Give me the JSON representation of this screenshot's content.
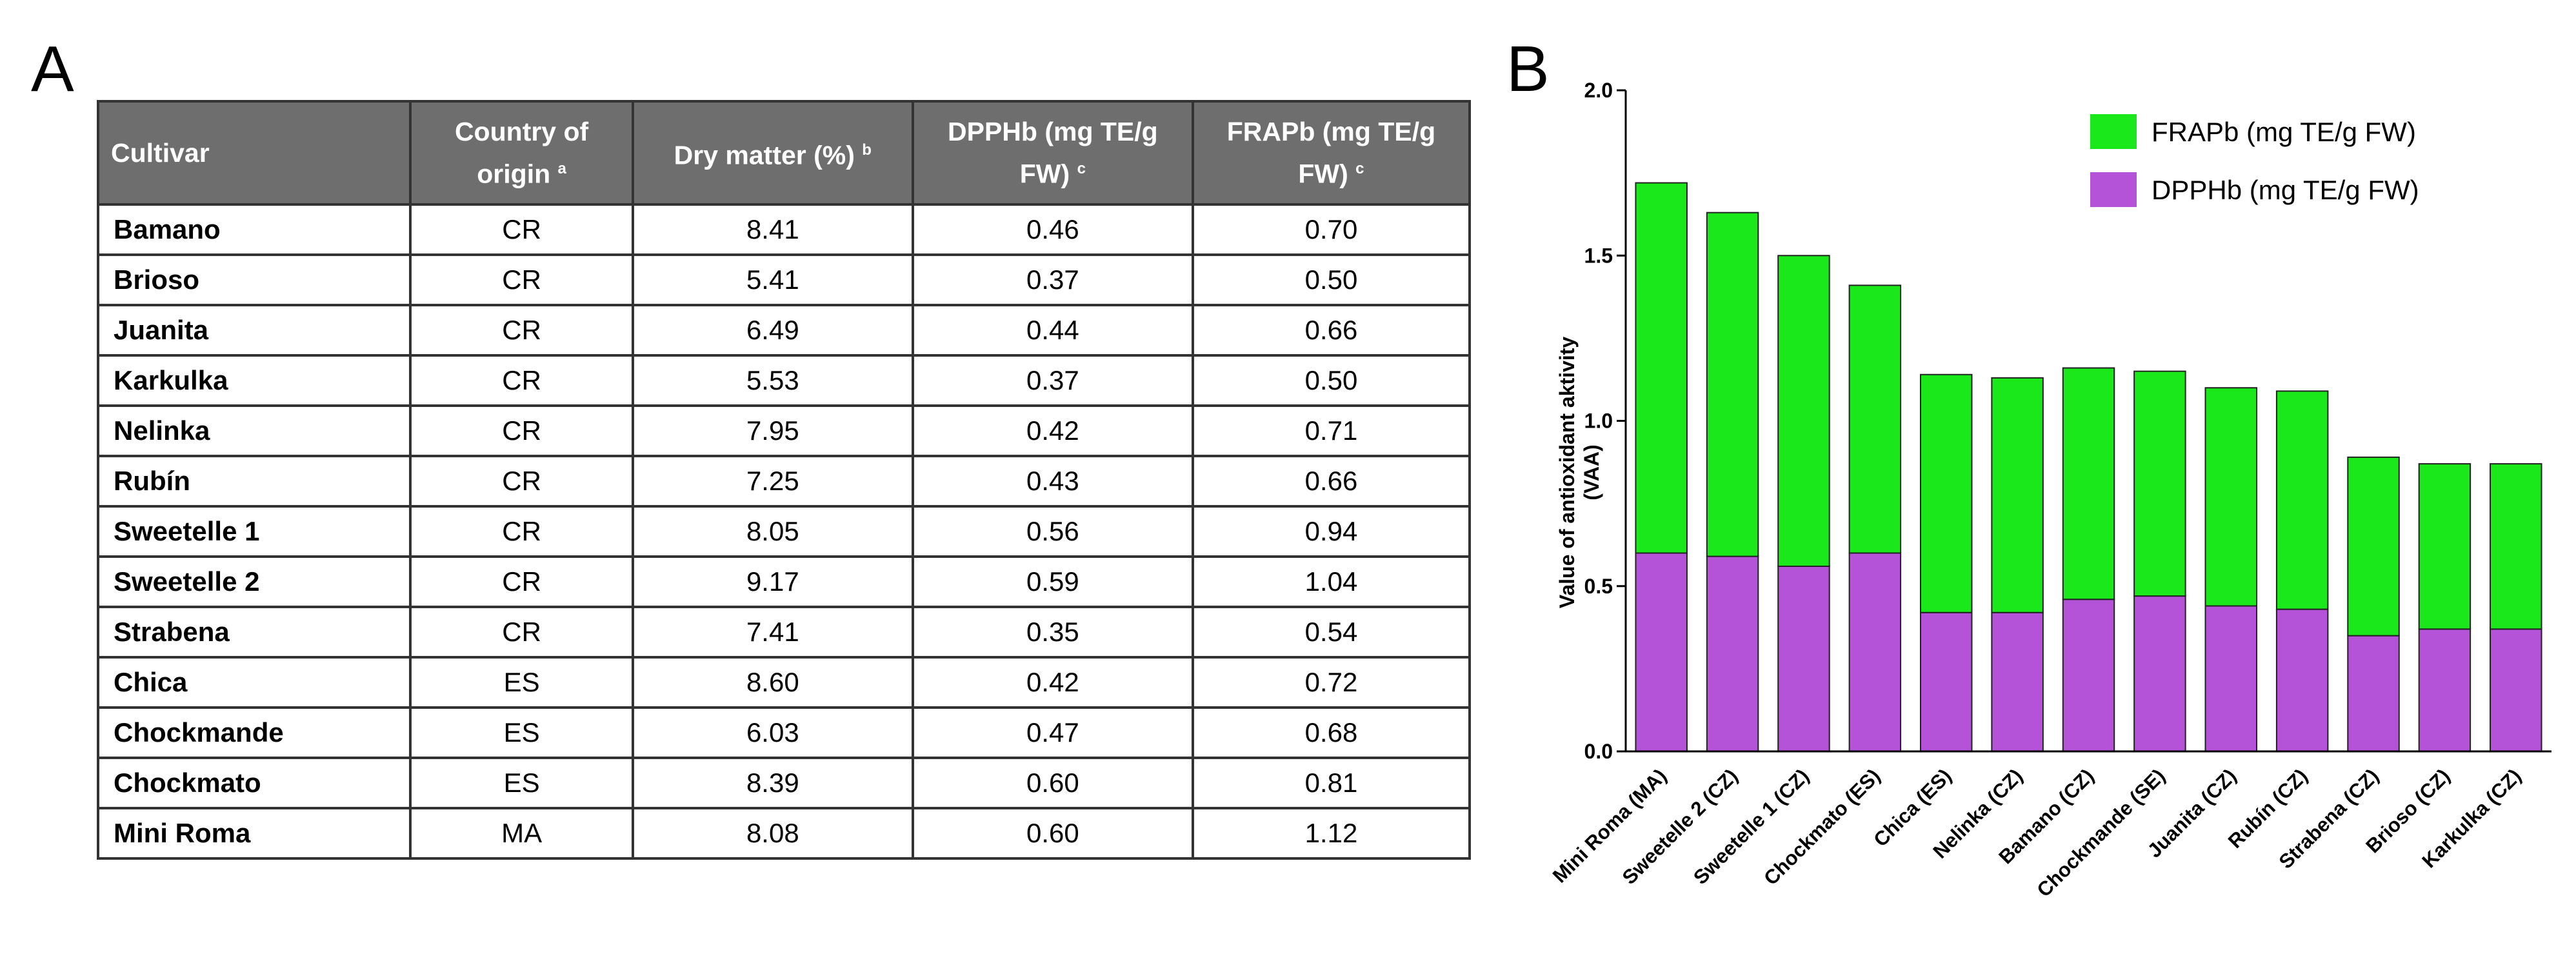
{
  "panels": {
    "a": "A",
    "b": "B"
  },
  "table": {
    "headers": {
      "cultivar": "Cultivar",
      "country": "Country of origin",
      "country_sup": "a",
      "dry_matter": "Dry matter (%)",
      "dry_matter_sup": "b",
      "dpph": "DPPHb (mg TE/g FW)",
      "dpph_sup": "c",
      "frap": "FRAPb (mg TE/g FW)",
      "frap_sup": "c"
    },
    "rows": [
      {
        "cultivar": "Bamano",
        "country": "CR",
        "dry_matter": "8.41",
        "dpph": "0.46",
        "frap": "0.70"
      },
      {
        "cultivar": "Brioso",
        "country": "CR",
        "dry_matter": "5.41",
        "dpph": "0.37",
        "frap": "0.50"
      },
      {
        "cultivar": "Juanita",
        "country": "CR",
        "dry_matter": "6.49",
        "dpph": "0.44",
        "frap": "0.66"
      },
      {
        "cultivar": "Karkulka",
        "country": "CR",
        "dry_matter": "5.53",
        "dpph": "0.37",
        "frap": "0.50"
      },
      {
        "cultivar": "Nelinka",
        "country": "CR",
        "dry_matter": "7.95",
        "dpph": "0.42",
        "frap": "0.71"
      },
      {
        "cultivar": "Rubín",
        "country": "CR",
        "dry_matter": "7.25",
        "dpph": "0.43",
        "frap": "0.66"
      },
      {
        "cultivar": "Sweetelle 1",
        "country": "CR",
        "dry_matter": "8.05",
        "dpph": "0.56",
        "frap": "0.94"
      },
      {
        "cultivar": "Sweetelle 2",
        "country": "CR",
        "dry_matter": "9.17",
        "dpph": "0.59",
        "frap": "1.04"
      },
      {
        "cultivar": "Strabena",
        "country": "CR",
        "dry_matter": "7.41",
        "dpph": "0.35",
        "frap": "0.54"
      },
      {
        "cultivar": "Chica",
        "country": "ES",
        "dry_matter": "8.60",
        "dpph": "0.42",
        "frap": "0.72"
      },
      {
        "cultivar": "Chockmande",
        "country": "ES",
        "dry_matter": "6.03",
        "dpph": "0.47",
        "frap": "0.68"
      },
      {
        "cultivar": "Chockmato",
        "country": "ES",
        "dry_matter": "8.39",
        "dpph": "0.60",
        "frap": "0.81"
      },
      {
        "cultivar": "Mini Roma",
        "country": "MA",
        "dry_matter": "8.08",
        "dpph": "0.60",
        "frap": "1.12"
      }
    ]
  },
  "chart_data": {
    "type": "bar",
    "stacked": true,
    "title": "",
    "xlabel": "",
    "ylabel": "Value of antioxidant aktivity (VAA)",
    "ylim": [
      0,
      2.0
    ],
    "yticks": [
      "0.0",
      "0.5",
      "1.0",
      "1.5",
      "2.0"
    ],
    "ytick_values": [
      0,
      0.5,
      1.0,
      1.5,
      2.0
    ],
    "legend_position": "top-right",
    "categories": [
      "Mini Roma (MA)",
      "Sweetelle 2 (CZ)",
      "Sweetelle 1 (CZ)",
      "Chockmato (ES)",
      "Chica (ES)",
      "Nelinka (CZ)",
      "Bamano (CZ)",
      "Chockmande (SE)",
      "Juanita (CZ)",
      "Rubín (CZ)",
      "Strabena (CZ)",
      "Brioso (CZ)",
      "Karkulka (CZ)"
    ],
    "series": [
      {
        "name": "DPPHb (mg TE/g FW)",
        "color": "#b452d8",
        "values": [
          0.6,
          0.59,
          0.56,
          0.6,
          0.42,
          0.42,
          0.46,
          0.47,
          0.44,
          0.43,
          0.35,
          0.37,
          0.37
        ]
      },
      {
        "name": "FRAPb (mg TE/g FW)",
        "color": "#1ae81a",
        "values": [
          1.12,
          1.04,
          0.94,
          0.81,
          0.72,
          0.71,
          0.7,
          0.68,
          0.66,
          0.66,
          0.54,
          0.5,
          0.5
        ]
      }
    ]
  }
}
